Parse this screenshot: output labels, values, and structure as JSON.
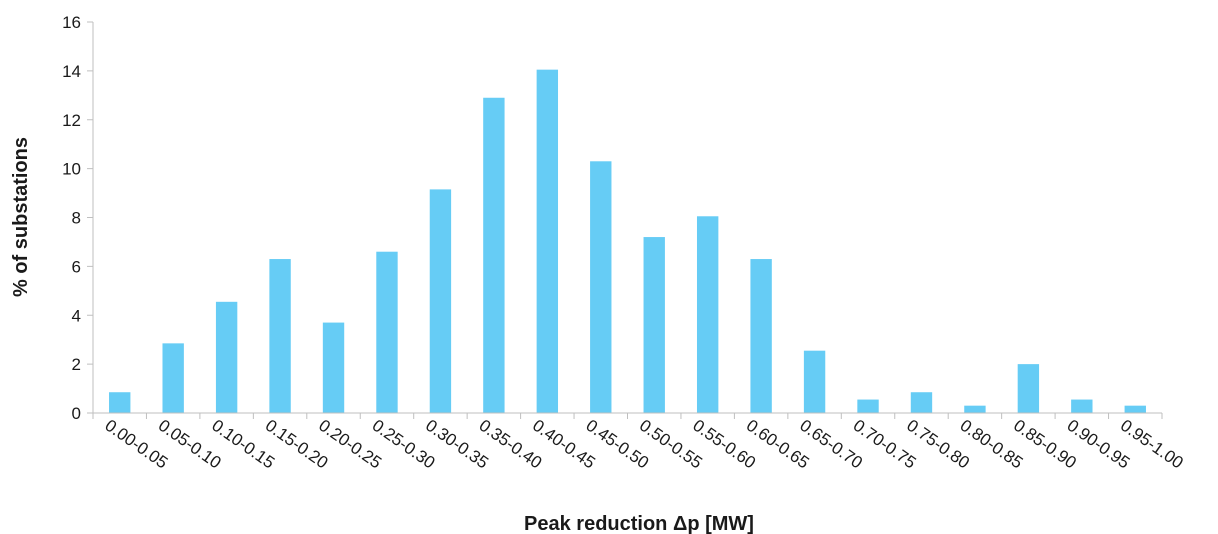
{
  "chart_data": {
    "type": "bar",
    "title": "",
    "xlabel": "Peak reduction Δp [MW]",
    "ylabel": "% of substations",
    "ylim": [
      0,
      16
    ],
    "yticks": [
      0,
      2,
      4,
      6,
      8,
      10,
      12,
      14,
      16
    ],
    "grid": false,
    "legend": "none",
    "bar_color": "#66CCF5",
    "categories": [
      "0.00-0.05",
      "0.05-0.10",
      "0.10-0.15",
      "0.15-0.20",
      "0.20-0.25",
      "0.25-0.30",
      "0.30-0.35",
      "0.35-0.40",
      "0.40-0.45",
      "0.45-0.50",
      "0.50-0.55",
      "0.55-0.60",
      "0.60-0.65",
      "0.65-0.70",
      "0.70-0.75",
      "0.75-0.80",
      "0.80-0.85",
      "0.85-0.90",
      "0.90-0.95",
      "0.95-1.00"
    ],
    "values": [
      0.85,
      2.85,
      4.55,
      6.3,
      3.7,
      6.6,
      9.15,
      12.9,
      14.05,
      10.3,
      7.2,
      8.05,
      6.3,
      2.55,
      0.55,
      0.85,
      0.3,
      2.0,
      0.55,
      0.3
    ]
  }
}
